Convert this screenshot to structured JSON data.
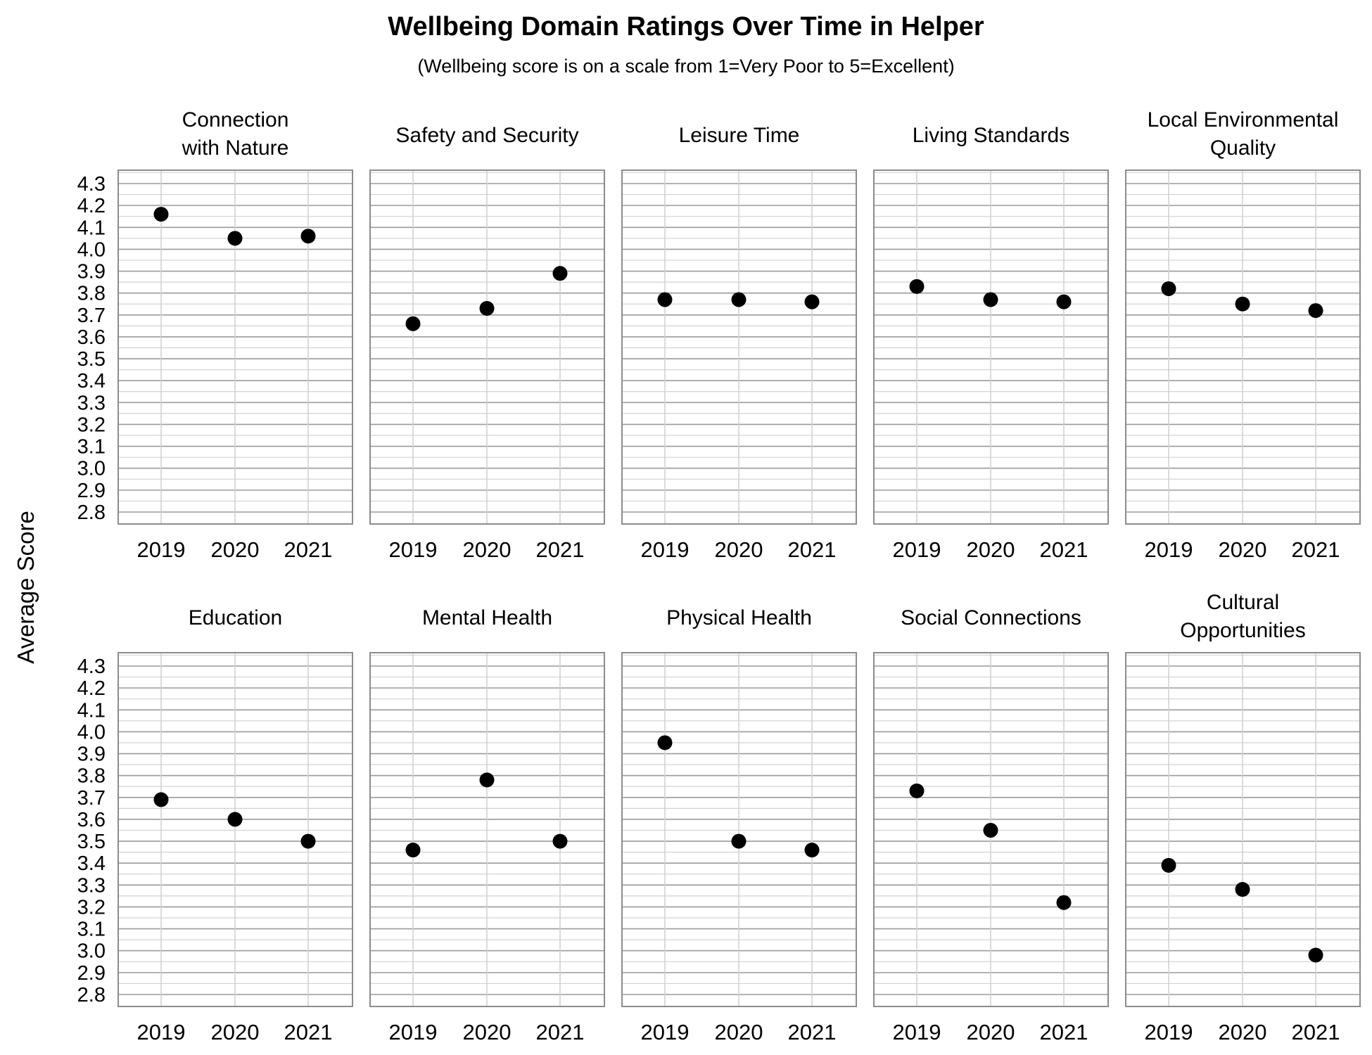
{
  "chart_data": {
    "type": "scatter",
    "title": "Wellbeing Domain Ratings Over Time in Helper",
    "subtitle": "(Wellbeing score is on a scale from 1=Very Poor to 5=Excellent)",
    "ylabel": "Average Score",
    "xlabel": "",
    "ylim": [
      2.8,
      4.3
    ],
    "y_ticks": [
      "2.8",
      "2.9",
      "3.0",
      "3.1",
      "3.2",
      "3.3",
      "3.4",
      "3.5",
      "3.6",
      "3.7",
      "3.8",
      "3.9",
      "4.0",
      "4.1",
      "4.2",
      "4.3"
    ],
    "x": [
      "2019",
      "2020",
      "2021"
    ],
    "grid": true,
    "marker_color": "#000000",
    "panels": [
      {
        "title": [
          "Connection",
          "with Nature"
        ],
        "values": [
          4.16,
          4.05,
          4.06
        ]
      },
      {
        "title": [
          "Safety and Security"
        ],
        "values": [
          3.66,
          3.73,
          3.89
        ]
      },
      {
        "title": [
          "Leisure Time"
        ],
        "values": [
          3.77,
          3.77,
          3.76
        ]
      },
      {
        "title": [
          "Living Standards"
        ],
        "values": [
          3.83,
          3.77,
          3.76
        ]
      },
      {
        "title": [
          "Local Environmental",
          "Quality"
        ],
        "values": [
          3.82,
          3.75,
          3.72
        ]
      },
      {
        "title": [
          "Education"
        ],
        "values": [
          3.69,
          3.6,
          3.5
        ]
      },
      {
        "title": [
          "Mental Health"
        ],
        "values": [
          3.46,
          3.78,
          3.5
        ]
      },
      {
        "title": [
          "Physical Health"
        ],
        "values": [
          3.95,
          3.5,
          3.46
        ]
      },
      {
        "title": [
          "Social Connections"
        ],
        "values": [
          3.73,
          3.55,
          3.22
        ]
      },
      {
        "title": [
          "Cultural",
          "Opportunities"
        ],
        "values": [
          3.39,
          3.28,
          2.98
        ]
      }
    ]
  }
}
